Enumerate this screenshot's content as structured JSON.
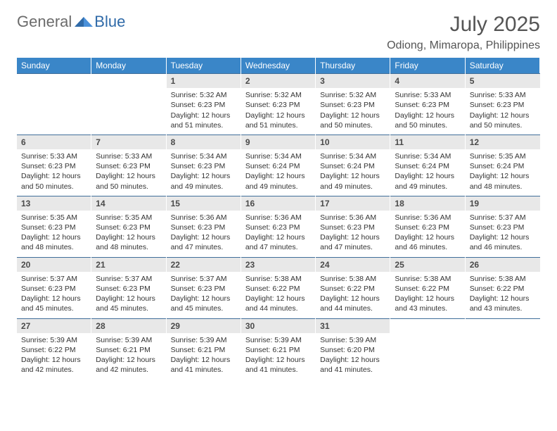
{
  "logo": {
    "text_left": "General",
    "text_right": "Blue"
  },
  "title": "July 2025",
  "location": "Odiong, Mimaropa, Philippines",
  "colors": {
    "header_bg": "#3a86c8",
    "daynum_bg": "#e8e8e8",
    "rule": "#406e9a",
    "text": "#333333",
    "title_text": "#555555"
  },
  "dayHeaders": [
    "Sunday",
    "Monday",
    "Tuesday",
    "Wednesday",
    "Thursday",
    "Friday",
    "Saturday"
  ],
  "weeks": [
    [
      {
        "blank": true
      },
      {
        "blank": true
      },
      {
        "day": "1",
        "sunrise": "5:32 AM",
        "sunset": "6:23 PM",
        "daylight": "12 hours and 51 minutes."
      },
      {
        "day": "2",
        "sunrise": "5:32 AM",
        "sunset": "6:23 PM",
        "daylight": "12 hours and 51 minutes."
      },
      {
        "day": "3",
        "sunrise": "5:32 AM",
        "sunset": "6:23 PM",
        "daylight": "12 hours and 50 minutes."
      },
      {
        "day": "4",
        "sunrise": "5:33 AM",
        "sunset": "6:23 PM",
        "daylight": "12 hours and 50 minutes."
      },
      {
        "day": "5",
        "sunrise": "5:33 AM",
        "sunset": "6:23 PM",
        "daylight": "12 hours and 50 minutes."
      }
    ],
    [
      {
        "day": "6",
        "sunrise": "5:33 AM",
        "sunset": "6:23 PM",
        "daylight": "12 hours and 50 minutes."
      },
      {
        "day": "7",
        "sunrise": "5:33 AM",
        "sunset": "6:23 PM",
        "daylight": "12 hours and 50 minutes."
      },
      {
        "day": "8",
        "sunrise": "5:34 AM",
        "sunset": "6:23 PM",
        "daylight": "12 hours and 49 minutes."
      },
      {
        "day": "9",
        "sunrise": "5:34 AM",
        "sunset": "6:24 PM",
        "daylight": "12 hours and 49 minutes."
      },
      {
        "day": "10",
        "sunrise": "5:34 AM",
        "sunset": "6:24 PM",
        "daylight": "12 hours and 49 minutes."
      },
      {
        "day": "11",
        "sunrise": "5:34 AM",
        "sunset": "6:24 PM",
        "daylight": "12 hours and 49 minutes."
      },
      {
        "day": "12",
        "sunrise": "5:35 AM",
        "sunset": "6:24 PM",
        "daylight": "12 hours and 48 minutes."
      }
    ],
    [
      {
        "day": "13",
        "sunrise": "5:35 AM",
        "sunset": "6:23 PM",
        "daylight": "12 hours and 48 minutes."
      },
      {
        "day": "14",
        "sunrise": "5:35 AM",
        "sunset": "6:23 PM",
        "daylight": "12 hours and 48 minutes."
      },
      {
        "day": "15",
        "sunrise": "5:36 AM",
        "sunset": "6:23 PM",
        "daylight": "12 hours and 47 minutes."
      },
      {
        "day": "16",
        "sunrise": "5:36 AM",
        "sunset": "6:23 PM",
        "daylight": "12 hours and 47 minutes."
      },
      {
        "day": "17",
        "sunrise": "5:36 AM",
        "sunset": "6:23 PM",
        "daylight": "12 hours and 47 minutes."
      },
      {
        "day": "18",
        "sunrise": "5:36 AM",
        "sunset": "6:23 PM",
        "daylight": "12 hours and 46 minutes."
      },
      {
        "day": "19",
        "sunrise": "5:37 AM",
        "sunset": "6:23 PM",
        "daylight": "12 hours and 46 minutes."
      }
    ],
    [
      {
        "day": "20",
        "sunrise": "5:37 AM",
        "sunset": "6:23 PM",
        "daylight": "12 hours and 45 minutes."
      },
      {
        "day": "21",
        "sunrise": "5:37 AM",
        "sunset": "6:23 PM",
        "daylight": "12 hours and 45 minutes."
      },
      {
        "day": "22",
        "sunrise": "5:37 AM",
        "sunset": "6:23 PM",
        "daylight": "12 hours and 45 minutes."
      },
      {
        "day": "23",
        "sunrise": "5:38 AM",
        "sunset": "6:22 PM",
        "daylight": "12 hours and 44 minutes."
      },
      {
        "day": "24",
        "sunrise": "5:38 AM",
        "sunset": "6:22 PM",
        "daylight": "12 hours and 44 minutes."
      },
      {
        "day": "25",
        "sunrise": "5:38 AM",
        "sunset": "6:22 PM",
        "daylight": "12 hours and 43 minutes."
      },
      {
        "day": "26",
        "sunrise": "5:38 AM",
        "sunset": "6:22 PM",
        "daylight": "12 hours and 43 minutes."
      }
    ],
    [
      {
        "day": "27",
        "sunrise": "5:39 AM",
        "sunset": "6:22 PM",
        "daylight": "12 hours and 42 minutes."
      },
      {
        "day": "28",
        "sunrise": "5:39 AM",
        "sunset": "6:21 PM",
        "daylight": "12 hours and 42 minutes."
      },
      {
        "day": "29",
        "sunrise": "5:39 AM",
        "sunset": "6:21 PM",
        "daylight": "12 hours and 41 minutes."
      },
      {
        "day": "30",
        "sunrise": "5:39 AM",
        "sunset": "6:21 PM",
        "daylight": "12 hours and 41 minutes."
      },
      {
        "day": "31",
        "sunrise": "5:39 AM",
        "sunset": "6:20 PM",
        "daylight": "12 hours and 41 minutes."
      },
      {
        "blank": true
      },
      {
        "blank": true
      }
    ]
  ],
  "labels": {
    "sunrise_prefix": "Sunrise: ",
    "sunset_prefix": "Sunset: ",
    "daylight_prefix": "Daylight: "
  }
}
